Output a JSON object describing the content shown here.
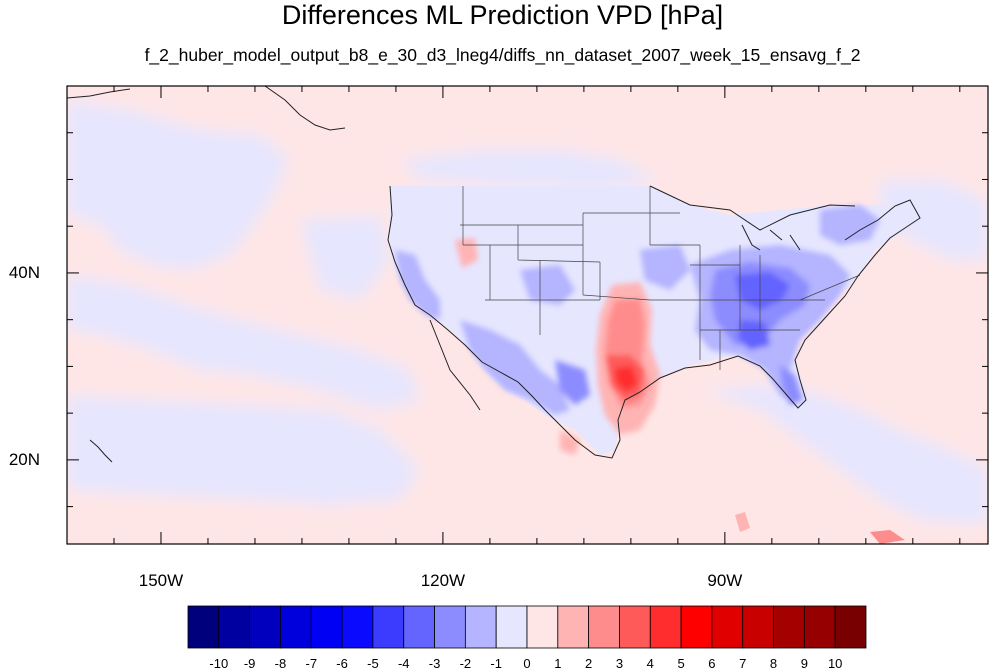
{
  "title": "Differences ML Prediction VPD [hPa]",
  "subtitle": "f_2_huber_model_output_b8_e_30_d3_lneg4/diffs_nn_dataset_2007_week_15_ensavg_f_2",
  "map": {
    "lon_range": [
      -160,
      -62
    ],
    "lat_range": [
      11,
      60
    ],
    "lon_ticks": [
      {
        "value": -150,
        "label": "150W"
      },
      {
        "value": -120,
        "label": "120W"
      },
      {
        "value": -90,
        "label": "90W"
      }
    ],
    "lat_ticks": [
      {
        "value": 40,
        "label": "40N"
      },
      {
        "value": 20,
        "label": "20N"
      }
    ]
  },
  "colorbar": {
    "labels": [
      "-10",
      "-9",
      "-8",
      "-7",
      "-6",
      "-5",
      "-4",
      "-3",
      "-2",
      "-1",
      "0",
      "1",
      "2",
      "3",
      "4",
      "5",
      "6",
      "7",
      "8",
      "9",
      "10"
    ],
    "colors": [
      "#00007d",
      "#0000a0",
      "#0000be",
      "#0000dc",
      "#0000f5",
      "#0a0aff",
      "#3c3cff",
      "#6464ff",
      "#8c8cff",
      "#b4b4ff",
      "#e6e6ff",
      "#ffe6e6",
      "#ffb4b4",
      "#ff8c8c",
      "#ff5a5a",
      "#ff2d2d",
      "#ff0000",
      "#e10000",
      "#c80000",
      "#a50000",
      "#960000",
      "#780000"
    ]
  }
}
